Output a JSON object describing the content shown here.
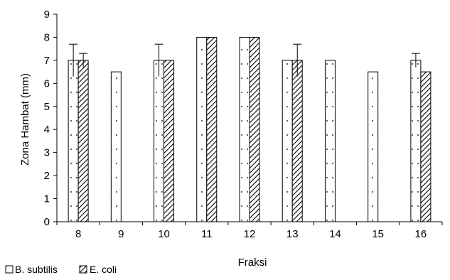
{
  "chart_data": {
    "type": "bar",
    "title": "",
    "xlabel": "Fraksi",
    "ylabel": "Zona Hambat (mm)",
    "ylim": [
      0,
      9
    ],
    "yticks": [
      0,
      1,
      2,
      3,
      4,
      5,
      6,
      7,
      8,
      9
    ],
    "grid": false,
    "legend_position": "bottom-left",
    "categories": [
      "8",
      "9",
      "10",
      "11",
      "12",
      "13",
      "14",
      "15",
      "16"
    ],
    "series": [
      {
        "name": "B. subtilis",
        "pattern": "dots",
        "values": [
          7,
          6.5,
          7,
          8,
          8,
          7,
          7,
          6.5,
          7
        ],
        "errors": [
          0.7,
          0,
          0.7,
          0,
          0,
          0,
          0,
          0,
          0.3
        ]
      },
      {
        "name": "E. coli",
        "pattern": "diagonal-hatch",
        "values": [
          7,
          0,
          7,
          8,
          8,
          7,
          0,
          0,
          6.5
        ],
        "errors": [
          0.3,
          0,
          0,
          0,
          0,
          0.7,
          0,
          0,
          0
        ]
      }
    ]
  }
}
